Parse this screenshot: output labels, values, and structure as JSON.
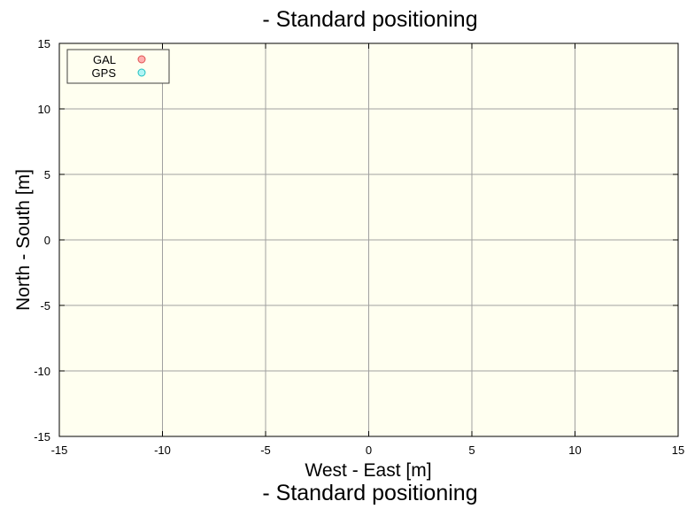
{
  "chart_data": {
    "type": "scatter",
    "title": "- Standard positioning",
    "subtitle": "- Standard positioning",
    "xlabel": "West - East [m]",
    "ylabel": "North - South [m]",
    "xlim": [
      -15,
      15
    ],
    "ylim": [
      -15,
      15
    ],
    "xticks": [
      "-15",
      "-10",
      "-5",
      "0",
      "5",
      "10",
      "15"
    ],
    "yticks": [
      "15",
      "10",
      "5",
      "0",
      "-5",
      "-10",
      "-15"
    ],
    "grid": true,
    "legend_position": "top-left",
    "background_color": "#fffff0",
    "grid_color": "#a0a0a0",
    "series": [
      {
        "name": "GAL",
        "color": "#ff8080",
        "points": []
      },
      {
        "name": "GPS",
        "color": "#40e0e0",
        "points": []
      }
    ]
  }
}
